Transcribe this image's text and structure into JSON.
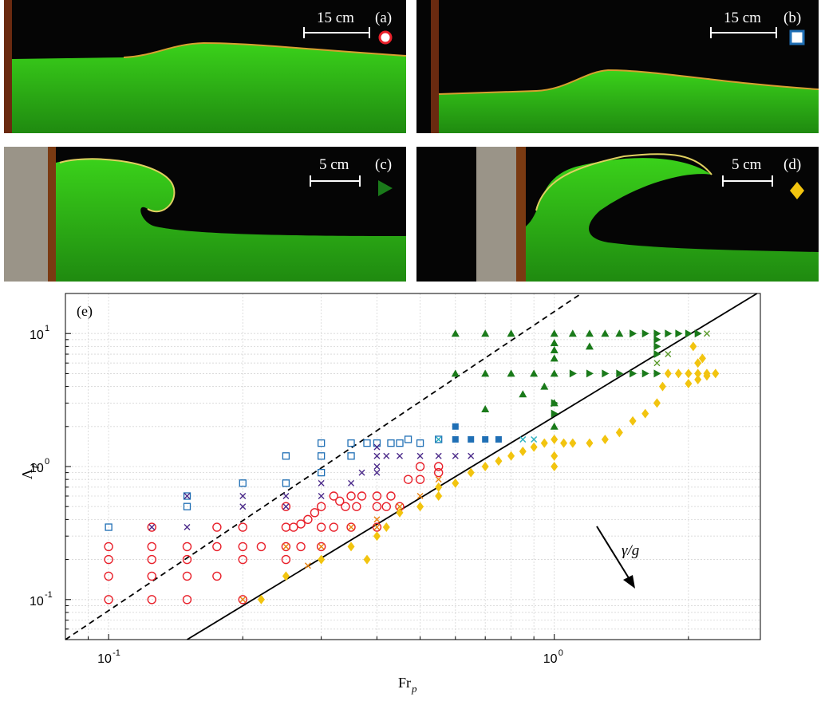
{
  "panels": [
    {
      "label": "(a)",
      "scale": "15 cm",
      "marker": "circle",
      "marker_color": "#e8202a"
    },
    {
      "label": "(b)",
      "scale": "15 cm",
      "marker": "square",
      "marker_color": "#1f6fb5"
    },
    {
      "label": "(c)",
      "scale": "5 cm",
      "marker": "triangle-right",
      "marker_color": "#1a7a1a"
    },
    {
      "label": "(d)",
      "scale": "5 cm",
      "marker": "diamond",
      "marker_color": "#f2c40f"
    }
  ],
  "chart_data": {
    "type": "scatter",
    "panel_label": "(e)",
    "xlabel": "Fr",
    "xlabel_sub": "p",
    "ylabel": "Λ",
    "ylabel_sub": "p",
    "xscale": "log",
    "yscale": "log",
    "xlim": [
      0.08,
      2.9
    ],
    "ylim": [
      0.05,
      20
    ],
    "xticks": [
      0.1,
      1.0
    ],
    "xtick_labels": [
      "10",
      "10"
    ],
    "xtick_exps": [
      "-1",
      "0"
    ],
    "yticks": [
      0.1,
      1.0,
      10
    ],
    "ytick_labels": [
      "10",
      "10",
      "10"
    ],
    "ytick_exps": [
      "-1",
      "0",
      "1"
    ],
    "grid": true,
    "annotation": "γ/g",
    "lines": [
      {
        "style": "dashed",
        "color": "#000000",
        "x": [
          0.08,
          1.15
        ],
        "y": [
          0.05,
          20
        ]
      },
      {
        "style": "solid",
        "color": "#000000",
        "x": [
          0.15,
          2.85
        ],
        "y": [
          0.05,
          20
        ]
      }
    ],
    "series": [
      {
        "marker": "circle-open",
        "color": "#e8202a",
        "points": [
          [
            0.1,
            0.1
          ],
          [
            0.1,
            0.15
          ],
          [
            0.1,
            0.2
          ],
          [
            0.1,
            0.25
          ],
          [
            0.125,
            0.1
          ],
          [
            0.125,
            0.15
          ],
          [
            0.125,
            0.2
          ],
          [
            0.125,
            0.25
          ],
          [
            0.125,
            0.35
          ],
          [
            0.15,
            0.1
          ],
          [
            0.15,
            0.15
          ],
          [
            0.15,
            0.2
          ],
          [
            0.15,
            0.25
          ],
          [
            0.175,
            0.15
          ],
          [
            0.175,
            0.25
          ],
          [
            0.175,
            0.35
          ],
          [
            0.2,
            0.1
          ],
          [
            0.2,
            0.2
          ],
          [
            0.2,
            0.25
          ],
          [
            0.2,
            0.35
          ],
          [
            0.22,
            0.25
          ],
          [
            0.25,
            0.2
          ],
          [
            0.25,
            0.25
          ],
          [
            0.25,
            0.35
          ],
          [
            0.25,
            0.5
          ],
          [
            0.26,
            0.35
          ],
          [
            0.27,
            0.25
          ],
          [
            0.27,
            0.37
          ],
          [
            0.28,
            0.4
          ],
          [
            0.29,
            0.45
          ],
          [
            0.3,
            0.25
          ],
          [
            0.3,
            0.35
          ],
          [
            0.3,
            0.5
          ],
          [
            0.32,
            0.35
          ],
          [
            0.32,
            0.6
          ],
          [
            0.33,
            0.55
          ],
          [
            0.34,
            0.5
          ],
          [
            0.35,
            0.35
          ],
          [
            0.35,
            0.6
          ],
          [
            0.36,
            0.5
          ],
          [
            0.37,
            0.6
          ],
          [
            0.4,
            0.35
          ],
          [
            0.4,
            0.5
          ],
          [
            0.4,
            0.6
          ],
          [
            0.42,
            0.5
          ],
          [
            0.43,
            0.6
          ],
          [
            0.45,
            0.5
          ],
          [
            0.5,
            0.8
          ],
          [
            0.5,
            1.0
          ],
          [
            0.55,
            0.9
          ],
          [
            0.55,
            1.0
          ],
          [
            0.47,
            0.8
          ]
        ]
      },
      {
        "marker": "square-open",
        "color": "#1f6fb5",
        "points": [
          [
            0.1,
            0.35
          ],
          [
            0.15,
            0.5
          ],
          [
            0.15,
            0.6
          ],
          [
            0.2,
            0.75
          ],
          [
            0.25,
            1.2
          ],
          [
            0.25,
            0.75
          ],
          [
            0.3,
            1.2
          ],
          [
            0.3,
            1.5
          ],
          [
            0.3,
            0.9
          ],
          [
            0.35,
            1.5
          ],
          [
            0.35,
            1.2
          ],
          [
            0.38,
            1.5
          ],
          [
            0.4,
            1.5
          ],
          [
            0.43,
            1.5
          ],
          [
            0.45,
            1.5
          ],
          [
            0.47,
            1.6
          ],
          [
            0.5,
            1.5
          ],
          [
            0.55,
            1.6
          ]
        ]
      },
      {
        "marker": "square",
        "color": "#1f6fb5",
        "points": [
          [
            0.6,
            1.6
          ],
          [
            0.6,
            2.0
          ],
          [
            0.65,
            1.6
          ],
          [
            0.7,
            1.6
          ],
          [
            0.75,
            1.6
          ]
        ]
      },
      {
        "marker": "x",
        "color": "#4b2a8a",
        "points": [
          [
            0.125,
            0.35
          ],
          [
            0.15,
            0.35
          ],
          [
            0.15,
            0.6
          ],
          [
            0.2,
            0.5
          ],
          [
            0.2,
            0.6
          ],
          [
            0.25,
            0.6
          ],
          [
            0.25,
            0.5
          ],
          [
            0.3,
            0.75
          ],
          [
            0.3,
            0.6
          ],
          [
            0.35,
            0.75
          ],
          [
            0.37,
            0.9
          ],
          [
            0.4,
            0.9
          ],
          [
            0.4,
            1.0
          ],
          [
            0.4,
            1.2
          ],
          [
            0.4,
            1.4
          ],
          [
            0.42,
            1.2
          ],
          [
            0.45,
            1.2
          ],
          [
            0.5,
            1.2
          ],
          [
            0.55,
            1.2
          ],
          [
            0.6,
            1.2
          ],
          [
            0.65,
            1.2
          ]
        ]
      },
      {
        "marker": "x",
        "color": "#2ab0c0",
        "points": [
          [
            0.55,
            1.6
          ],
          [
            0.85,
            1.6
          ],
          [
            0.9,
            1.6
          ]
        ]
      },
      {
        "marker": "x",
        "color": "#e8820f",
        "points": [
          [
            0.2,
            0.1
          ],
          [
            0.25,
            0.25
          ],
          [
            0.28,
            0.18
          ],
          [
            0.3,
            0.25
          ],
          [
            0.35,
            0.35
          ],
          [
            0.4,
            0.35
          ],
          [
            0.4,
            0.4
          ],
          [
            0.45,
            0.5
          ],
          [
            0.5,
            0.6
          ],
          [
            0.55,
            0.8
          ]
        ]
      },
      {
        "marker": "x",
        "color": "#5a9a2a",
        "points": [
          [
            1.7,
            6.0
          ],
          [
            2.2,
            10.0
          ],
          [
            1.8,
            7.0
          ]
        ]
      },
      {
        "marker": "triangle-up",
        "color": "#1a7a1a",
        "points": [
          [
            0.6,
            10
          ],
          [
            0.6,
            5
          ],
          [
            0.7,
            10
          ],
          [
            0.7,
            5
          ],
          [
            0.8,
            10
          ],
          [
            0.8,
            5
          ],
          [
            0.7,
            2.7
          ],
          [
            0.9,
            5
          ],
          [
            0.85,
            3.5
          ],
          [
            0.95,
            4
          ],
          [
            1.0,
            10
          ],
          [
            1.0,
            8.5
          ],
          [
            1.0,
            7.5
          ],
          [
            1.0,
            6.5
          ],
          [
            1.0,
            5
          ],
          [
            1.0,
            3
          ],
          [
            1.1,
            10
          ],
          [
            1.2,
            10
          ],
          [
            1.2,
            8
          ],
          [
            1.3,
            10
          ],
          [
            1.4,
            10
          ],
          [
            1.0,
            2.0
          ]
        ]
      },
      {
        "marker": "triangle-right",
        "color": "#1a7a1a",
        "points": [
          [
            1.5,
            10
          ],
          [
            1.6,
            10
          ],
          [
            1.7,
            10
          ],
          [
            1.7,
            9
          ],
          [
            1.7,
            8
          ],
          [
            1.7,
            7
          ],
          [
            1.8,
            10
          ],
          [
            1.9,
            10
          ],
          [
            2.0,
            10
          ],
          [
            2.1,
            10
          ],
          [
            1.1,
            5
          ],
          [
            1.2,
            5
          ],
          [
            1.3,
            5
          ],
          [
            1.4,
            5
          ],
          [
            1.5,
            5
          ],
          [
            1.6,
            5
          ],
          [
            1.7,
            5
          ],
          [
            1.0,
            2.5
          ],
          [
            1.0,
            3.0
          ]
        ]
      },
      {
        "marker": "diamond",
        "color": "#f2c40f",
        "points": [
          [
            0.22,
            0.1
          ],
          [
            0.25,
            0.15
          ],
          [
            0.3,
            0.2
          ],
          [
            0.35,
            0.25
          ],
          [
            0.38,
            0.2
          ],
          [
            0.4,
            0.3
          ],
          [
            0.42,
            0.35
          ],
          [
            0.45,
            0.45
          ],
          [
            0.5,
            0.5
          ],
          [
            0.55,
            0.6
          ],
          [
            0.55,
            0.7
          ],
          [
            0.6,
            0.75
          ],
          [
            0.65,
            0.9
          ],
          [
            0.7,
            1.0
          ],
          [
            0.75,
            1.1
          ],
          [
            0.8,
            1.2
          ],
          [
            0.85,
            1.3
          ],
          [
            0.9,
            1.4
          ],
          [
            0.95,
            1.5
          ],
          [
            1.0,
            1.6
          ],
          [
            1.0,
            1.2
          ],
          [
            1.0,
            1.0
          ],
          [
            1.05,
            1.5
          ],
          [
            1.1,
            1.5
          ],
          [
            1.2,
            1.5
          ],
          [
            1.3,
            1.6
          ],
          [
            1.4,
            1.8
          ],
          [
            1.5,
            2.2
          ],
          [
            1.6,
            2.5
          ],
          [
            1.7,
            3.0
          ],
          [
            1.75,
            4.0
          ],
          [
            1.8,
            5.0
          ],
          [
            1.9,
            5.0
          ],
          [
            2.0,
            5.0
          ],
          [
            2.1,
            5.0
          ],
          [
            2.2,
            5.0
          ],
          [
            2.0,
            4.2
          ],
          [
            2.1,
            4.5
          ],
          [
            2.05,
            8.0
          ],
          [
            2.1,
            6.0
          ],
          [
            2.15,
            6.5
          ],
          [
            2.2,
            4.8
          ],
          [
            2.3,
            5.0
          ]
        ]
      }
    ]
  }
}
